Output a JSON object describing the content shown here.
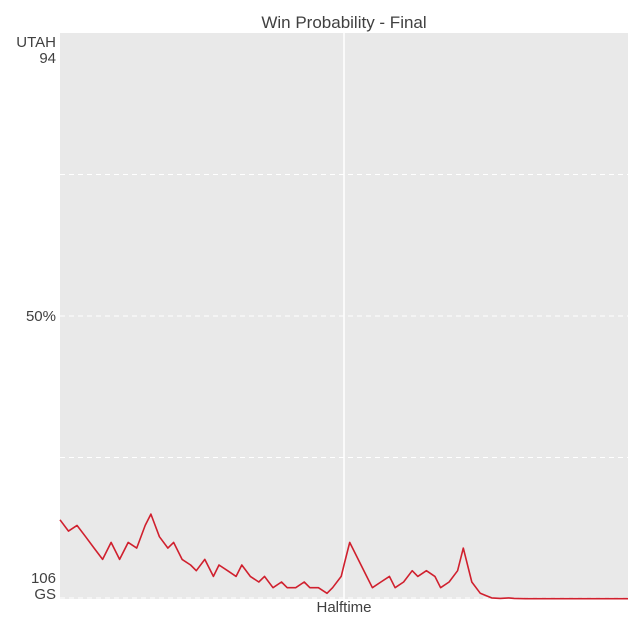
{
  "chart_data": {
    "type": "line",
    "title": "Win Probability  - Final",
    "colors": {
      "plot_bg": "#e9e9e9",
      "line": "#d0202e",
      "grid": "#ffffff",
      "text": "#404040"
    },
    "y_axis": {
      "top_team": "UTAH",
      "top_score": "94",
      "bottom_score": "106",
      "bottom_team": "GS",
      "mid_label": "50%"
    },
    "x_axis": {
      "marker_label": "Halftime",
      "marker_position": 0.5
    },
    "ylim": [
      0,
      100
    ],
    "grid": true,
    "series": [
      {
        "x": [
          0,
          1.5,
          3,
          4.5,
          6,
          7.5,
          9,
          10.5,
          12,
          13.5,
          15,
          16,
          17.5,
          19,
          20,
          21.5,
          23,
          24,
          25.5,
          27,
          28,
          29.5,
          31,
          32,
          33.5,
          35,
          36,
          37.5,
          39,
          40,
          41.5,
          43,
          44,
          45.5,
          47,
          48,
          49.5,
          50,
          51,
          52.5,
          54,
          55,
          56.5,
          58,
          59,
          60.5,
          62,
          63,
          64.5,
          66,
          67,
          68.5,
          70,
          71,
          72.5,
          74,
          75,
          76,
          77.5,
          79,
          80,
          82,
          85,
          88,
          91,
          94,
          97,
          100
        ],
        "y": [
          14,
          12,
          13,
          11,
          9,
          7,
          10,
          7,
          10,
          9,
          13,
          15,
          11,
          9,
          10,
          7,
          6,
          5,
          7,
          4,
          6,
          5,
          4,
          6,
          4,
          3,
          4,
          2,
          3,
          2,
          2,
          3,
          2,
          2,
          1,
          2,
          4,
          6,
          10,
          7,
          4,
          2,
          3,
          4,
          2,
          3,
          5,
          4,
          5,
          4,
          2,
          3,
          5,
          9,
          3,
          1,
          0.6,
          0.2,
          0.1,
          0.2,
          0.1,
          0.05,
          0.05,
          0.05,
          0.05,
          0.05,
          0.05,
          0.05
        ]
      }
    ]
  }
}
